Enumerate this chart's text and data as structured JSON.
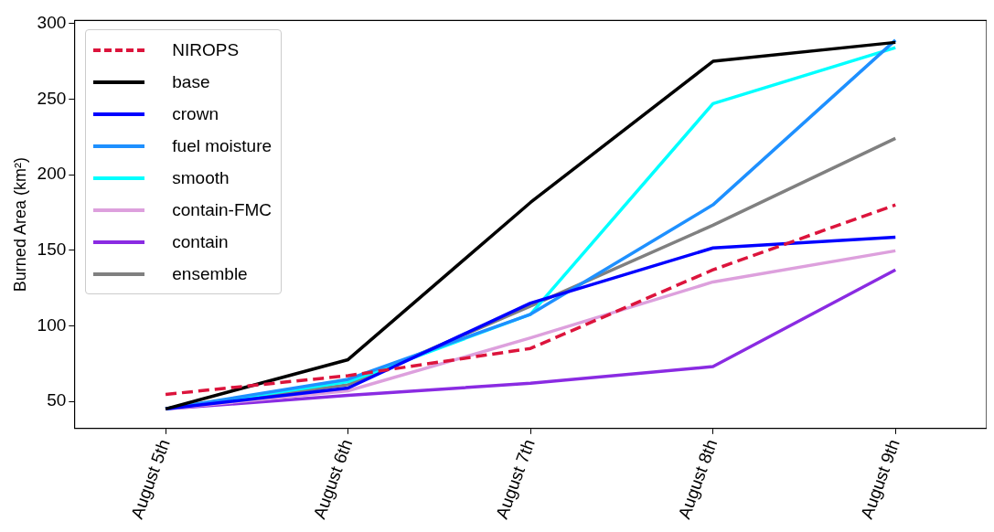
{
  "chart_data": {
    "type": "line",
    "ylabel": "Burned Area (km²)",
    "categories": [
      "August 5th",
      "August 6th",
      "August 7th",
      "August 8th",
      "August 9th"
    ],
    "ylim": [
      32,
      302
    ],
    "yticks": [
      50,
      100,
      150,
      200,
      250,
      300
    ],
    "grid": false,
    "legend": "top left",
    "marker": "none",
    "series": [
      {
        "name": "NIROPS",
        "color": "#dc143c",
        "line_style": "dashed",
        "values": [
          54.6,
          67,
          85,
          137,
          180
        ]
      },
      {
        "name": "base",
        "color": "#000000",
        "values": [
          45,
          77.6,
          181.6,
          275,
          287.5
        ]
      },
      {
        "name": "crown",
        "color": "#0000ff",
        "values": [
          45,
          58.8,
          115,
          151.5,
          158.6
        ]
      },
      {
        "name": "fuel moisture",
        "color": "#1e90ff",
        "values": [
          45,
          64.6,
          107.6,
          180,
          289
        ]
      },
      {
        "name": "smooth",
        "color": "#00ffff",
        "values": [
          45,
          63,
          107.6,
          247,
          284
        ]
      },
      {
        "name": "contain-FMC",
        "color": "#dda0dd",
        "values": [
          45,
          57,
          92,
          129,
          149.6
        ]
      },
      {
        "name": "contain",
        "color": "#8a2be2",
        "values": [
          45,
          54,
          62,
          73,
          137
        ]
      },
      {
        "name": "ensemble",
        "color": "#808080",
        "values": [
          45,
          61,
          113,
          166.5,
          224
        ]
      }
    ]
  }
}
